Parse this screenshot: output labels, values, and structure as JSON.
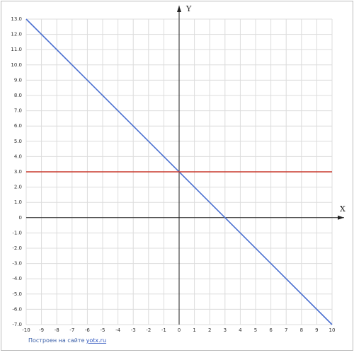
{
  "chart_data": {
    "type": "line",
    "x": [
      -10,
      10
    ],
    "series": [
      {
        "color": "#4a6fd0",
        "values": [
          13,
          -7
        ]
      },
      {
        "color": "#c83a2e",
        "values": [
          3,
          3
        ]
      }
    ],
    "xlim": [
      -10,
      10
    ],
    "ylim": [
      -7,
      13
    ],
    "xticks": [
      -10,
      -9,
      -8,
      -7,
      -6,
      -5,
      -4,
      -3,
      -2,
      -1,
      0,
      1,
      2,
      3,
      4,
      5,
      6,
      7,
      8,
      9,
      10
    ],
    "yticks": [
      {
        "value": -7,
        "label": "-7.0"
      },
      {
        "value": -6,
        "label": "-6.0"
      },
      {
        "value": -5,
        "label": "-5.0"
      },
      {
        "value": -4,
        "label": "-4.0"
      },
      {
        "value": -3,
        "label": "-3.0"
      },
      {
        "value": -2,
        "label": "-2.0"
      },
      {
        "value": -1,
        "label": "-1.0"
      },
      0,
      {
        "value": 1,
        "label": "1.0"
      },
      {
        "value": 2,
        "label": "2.0"
      },
      {
        "value": 3,
        "label": "3.0"
      },
      {
        "value": 4,
        "label": "4.0"
      },
      {
        "value": 5,
        "label": "5.0"
      },
      {
        "value": 6,
        "label": "6.0"
      },
      {
        "value": 7,
        "label": "7.0"
      },
      {
        "value": 8,
        "label": "8.0"
      },
      {
        "value": 9,
        "label": "9.0"
      },
      {
        "value": 10,
        "label": "10.0"
      },
      {
        "value": 11,
        "label": "11.0"
      },
      {
        "value": 12,
        "label": "12.0"
      },
      {
        "value": 13,
        "label": "13.0"
      }
    ],
    "xlabel": "X",
    "ylabel": "Y",
    "grid": true
  },
  "footer": {
    "text": "Построен на сайте",
    "link": "yotx.ru"
  }
}
